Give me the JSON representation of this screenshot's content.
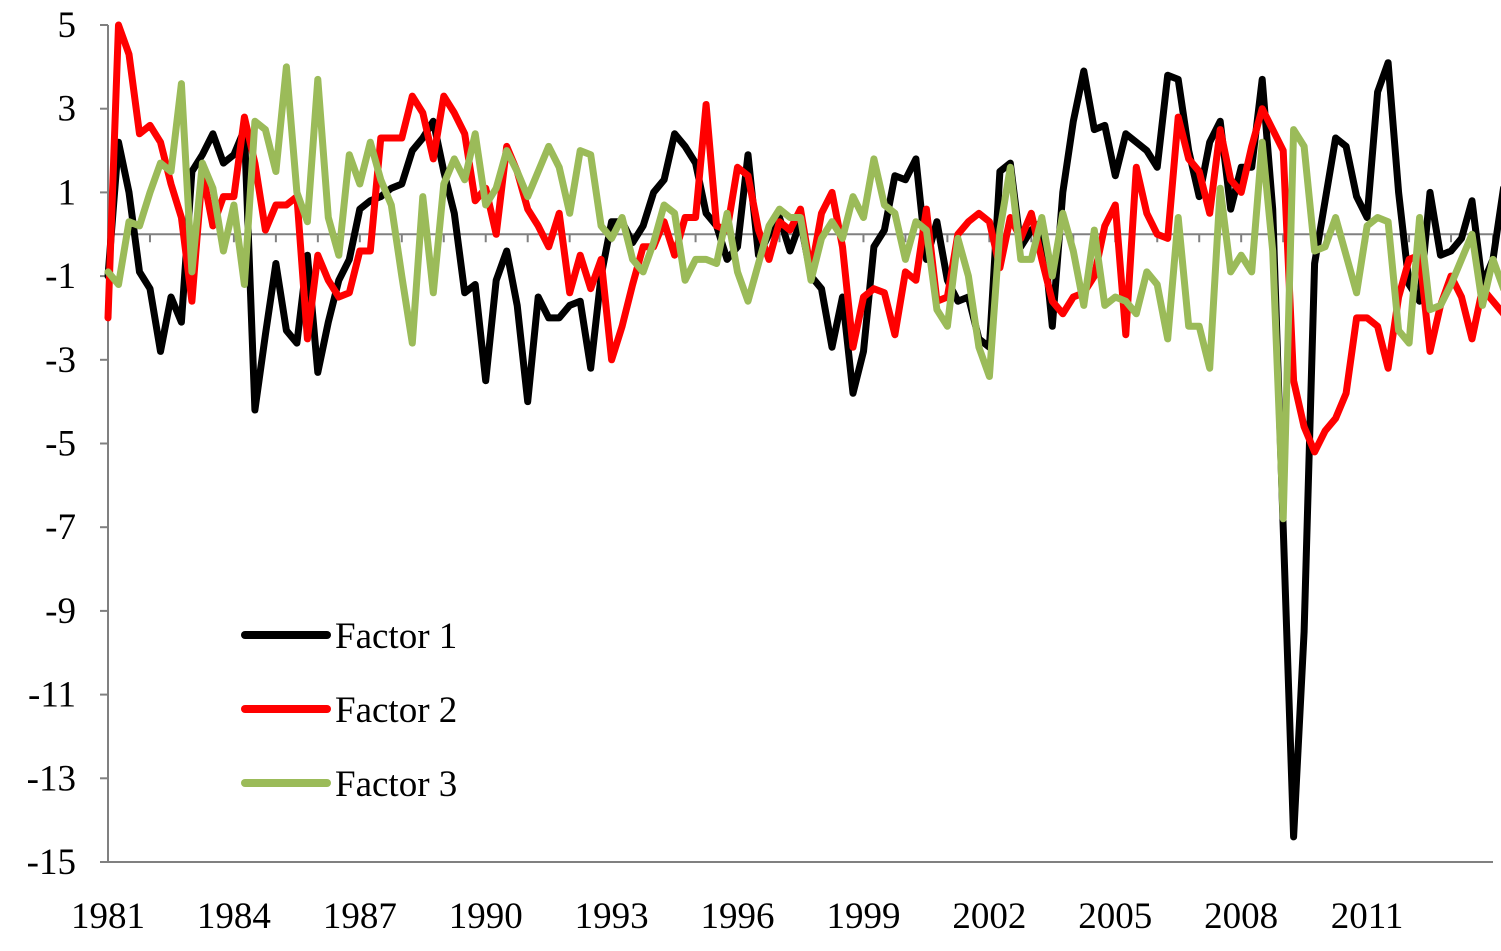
{
  "chart_data": {
    "type": "line",
    "title": "",
    "xlabel": "",
    "ylabel": "",
    "x_start": "1981Q1",
    "x_end": "2013Q4",
    "frequency": "quarterly",
    "xlim": [
      1981,
      2014
    ],
    "ylim": [
      -15,
      5
    ],
    "y_ticks": [
      "5",
      "3",
      "1",
      "-1",
      "-3",
      "-5",
      "-7",
      "-9",
      "-11",
      "-13",
      "-15"
    ],
    "x_ticks": [
      "1981",
      "1984",
      "1987",
      "1990",
      "1993",
      "1996",
      "1999",
      "2002",
      "2005",
      "2008",
      "2011"
    ],
    "zero_line": true,
    "grid": false,
    "legend_position": "lower-left",
    "series": [
      {
        "name": "Factor 1",
        "color": "#000000",
        "values": [
          -1.0,
          2.2,
          1.0,
          -0.9,
          -1.3,
          -2.8,
          -1.5,
          -2.1,
          1.5,
          1.9,
          2.4,
          1.7,
          1.9,
          2.5,
          -4.2,
          -2.4,
          -0.7,
          -2.3,
          -2.6,
          -0.5,
          -3.3,
          -2.1,
          -1.1,
          -0.6,
          0.6,
          0.8,
          0.9,
          1.1,
          1.2,
          2.0,
          2.3,
          2.7,
          1.5,
          0.5,
          -1.4,
          -1.2,
          -3.5,
          -1.1,
          -0.4,
          -1.7,
          -4.0,
          -1.5,
          -2.0,
          -2.0,
          -1.7,
          -1.6,
          -3.2,
          -1.0,
          0.3,
          0.3,
          -0.2,
          0.2,
          1.0,
          1.3,
          2.4,
          2.1,
          1.7,
          0.5,
          0.2,
          -0.6,
          -0.3,
          1.9,
          -0.5,
          0.0,
          0.4,
          -0.4,
          0.3,
          -1.0,
          -1.3,
          -2.7,
          -1.5,
          -3.8,
          -2.8,
          -0.3,
          0.1,
          1.4,
          1.3,
          1.8,
          -0.6,
          0.3,
          -1.1,
          -1.6,
          -1.5,
          -2.5,
          -2.7,
          1.5,
          1.7,
          -0.3,
          0.1,
          0.3,
          -2.2,
          1.0,
          2.7,
          3.9,
          2.5,
          2.6,
          1.4,
          2.4,
          2.2,
          2.0,
          1.6,
          3.8,
          3.7,
          2.0,
          0.9,
          2.2,
          2.7,
          0.6,
          1.6,
          1.6,
          3.7,
          0.6,
          -7.0,
          -14.4,
          -9.5,
          -0.7,
          0.8,
          2.3,
          2.1,
          0.9,
          0.4,
          3.4,
          4.1,
          1.0,
          -1.2,
          -1.6,
          1.0,
          -0.5,
          -0.4,
          -0.1,
          0.8,
          -1.2,
          -0.6,
          1.1
        ]
      },
      {
        "name": "Factor 2",
        "color": "#ff0000",
        "values": [
          -2.0,
          5.0,
          4.3,
          2.4,
          2.6,
          2.2,
          1.2,
          0.4,
          -1.6,
          1.5,
          0.2,
          0.9,
          0.9,
          2.8,
          1.7,
          0.1,
          0.7,
          0.7,
          0.9,
          -2.5,
          -0.5,
          -1.1,
          -1.5,
          -1.4,
          -0.4,
          -0.4,
          2.3,
          2.3,
          2.3,
          3.3,
          2.9,
          1.8,
          3.3,
          2.9,
          2.4,
          0.8,
          1.1,
          0.0,
          2.1,
          1.5,
          0.6,
          0.2,
          -0.3,
          0.5,
          -1.4,
          -0.5,
          -1.3,
          -0.6,
          -3.0,
          -2.2,
          -1.2,
          -0.3,
          -0.3,
          0.3,
          -0.5,
          0.4,
          0.4,
          3.1,
          0.2,
          0.1,
          1.6,
          1.4,
          0.1,
          -0.6,
          0.3,
          0.1,
          0.6,
          -0.9,
          0.5,
          1.0,
          -0.3,
          -2.7,
          -1.5,
          -1.3,
          -1.4,
          -2.4,
          -0.9,
          -1.1,
          0.6,
          -1.6,
          -1.5,
          0.0,
          0.3,
          0.5,
          0.3,
          -0.8,
          0.4,
          -0.1,
          0.5,
          -0.6,
          -1.6,
          -1.9,
          -1.5,
          -1.4,
          -1.0,
          0.2,
          0.7,
          -2.4,
          1.6,
          0.5,
          0.0,
          -0.1,
          2.8,
          1.8,
          1.5,
          0.5,
          2.5,
          1.3,
          1.0,
          2.1,
          3.0,
          2.5,
          2.0,
          -3.5,
          -4.6,
          -5.2,
          -4.7,
          -4.4,
          -3.8,
          -2.0,
          -2.0,
          -2.2,
          -3.2,
          -1.5,
          -0.6,
          -0.5,
          -2.8,
          -1.7,
          -1.0,
          -1.5,
          -2.5,
          -1.3,
          -1.6,
          -1.9,
          -2.3
        ]
      },
      {
        "name": "Factor 3",
        "color": "#9bbb59",
        "values": [
          -0.9,
          -1.2,
          0.3,
          0.2,
          1.0,
          1.7,
          1.5,
          3.6,
          -0.9,
          1.7,
          1.1,
          -0.4,
          0.7,
          -1.2,
          2.7,
          2.5,
          1.5,
          4.0,
          1.0,
          0.3,
          3.7,
          0.4,
          -0.5,
          1.9,
          1.2,
          2.2,
          1.3,
          0.7,
          -1.0,
          -2.6,
          0.9,
          -1.4,
          1.2,
          1.8,
          1.3,
          2.4,
          0.7,
          1.1,
          2.0,
          1.5,
          0.9,
          1.5,
          2.1,
          1.6,
          0.5,
          2.0,
          1.9,
          0.2,
          -0.1,
          0.4,
          -0.6,
          -0.9,
          -0.2,
          0.7,
          0.5,
          -1.1,
          -0.6,
          -0.6,
          -0.7,
          0.5,
          -0.9,
          -1.6,
          -0.7,
          0.2,
          0.6,
          0.4,
          0.4,
          -1.1,
          -0.1,
          0.3,
          -0.1,
          0.9,
          0.4,
          1.8,
          0.7,
          0.5,
          -0.6,
          0.3,
          0.1,
          -1.8,
          -2.2,
          -0.1,
          -1.0,
          -2.7,
          -3.4,
          0.1,
          1.6,
          -0.6,
          -0.6,
          0.4,
          -1.0,
          0.5,
          -0.4,
          -1.7,
          0.1,
          -1.7,
          -1.5,
          -1.6,
          -1.9,
          -0.9,
          -1.2,
          -2.5,
          0.4,
          -2.2,
          -2.2,
          -3.2,
          1.1,
          -0.9,
          -0.5,
          -0.9,
          2.2,
          -0.4,
          -6.8,
          2.5,
          2.1,
          -0.4,
          -0.3,
          0.4,
          -0.5,
          -1.4,
          0.2,
          0.4,
          0.3,
          -2.3,
          -2.6,
          0.4,
          -1.8,
          -1.7,
          -1.2,
          -0.6,
          0.0,
          -1.7,
          -0.6,
          -1.3
        ]
      }
    ]
  }
}
